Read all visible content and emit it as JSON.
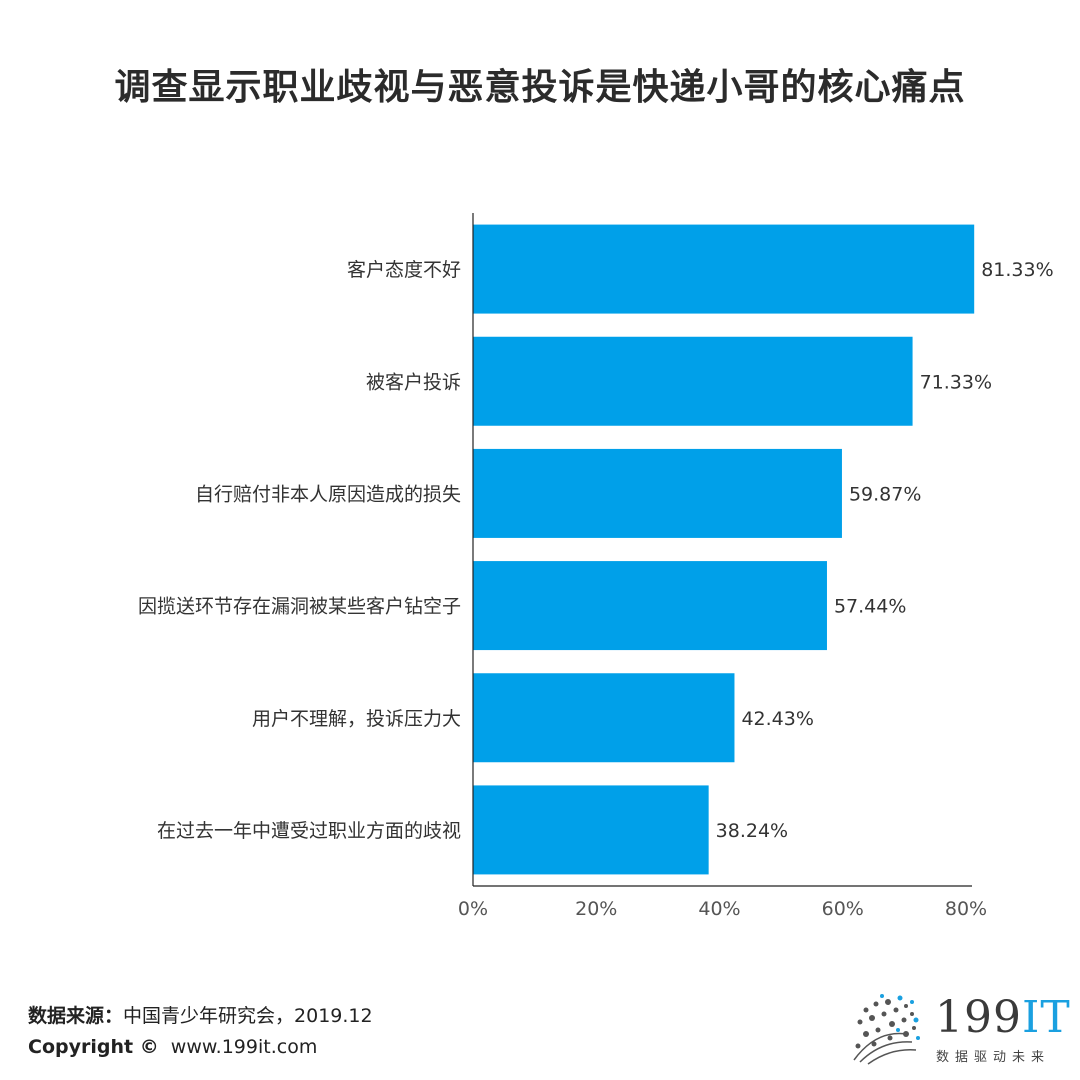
{
  "title": "调查显示职业歧视与恶意投诉是快递小哥的核心痛点",
  "chart_data": {
    "type": "bar",
    "orientation": "horizontal",
    "categories": [
      "客户态度不好",
      "被客户投诉",
      "自行赔付非本人原因造成的损失",
      "因揽送环节存在漏洞被某些客户钻空子",
      "用户不理解，投诉压力大",
      "在过去一年中遭受过职业方面的歧视"
    ],
    "values": [
      81.33,
      71.33,
      59.87,
      57.44,
      42.43,
      38.24
    ],
    "value_labels": [
      "81.33%",
      "71.33%",
      "59.87%",
      "57.44%",
      "42.43%",
      "38.24%"
    ],
    "xlim": [
      0,
      80
    ],
    "xticks": [
      "0%",
      "20%",
      "40%",
      "60%",
      "80%"
    ],
    "xlabel": "",
    "ylabel": "",
    "grid": false,
    "bar_color": "#00a0e9"
  },
  "footer": {
    "source_label": "数据来源：",
    "source_text": "中国青少年研究会，2019.12",
    "copyright_label": "Copyright ©",
    "copyright_text": "www.199it.com"
  },
  "logo": {
    "brand_main": "199",
    "brand_accent": "IT",
    "tagline": "数据驱动未来"
  }
}
